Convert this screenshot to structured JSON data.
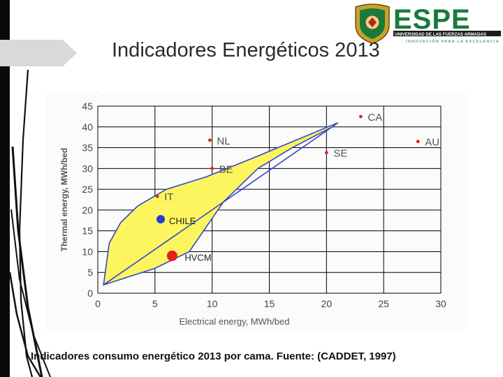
{
  "slide": {
    "title": "Indicadores Energéticos 2013",
    "caption": "Indicadores consumo energético 2013 por cama. Fuente: (CADDET, 1997)"
  },
  "logo": {
    "wordmark": "ESPE",
    "subtitle": "UNIVERSIDAD DE LAS FUERZAS ARMADAS",
    "tagline": "INNOVACIÓN PARA LA EXCELENCIA",
    "colors": {
      "green": "#1a7a3c",
      "text": "#1a1a1a"
    }
  },
  "colors": {
    "region_fill": "#fdf55f",
    "region_edge": "#3346c4",
    "point_red": "#e2231a",
    "point_blue": "#1f3fd6",
    "grid": "#000000"
  },
  "chart_data": {
    "type": "scatter",
    "xlabel": "Electrical energy, MWh/bed",
    "ylabel": "Thermal energy, MWh/bed",
    "xlim": [
      0,
      30
    ],
    "ylim": [
      0,
      45
    ],
    "x_ticks": [
      0,
      5,
      10,
      15,
      20,
      25,
      30
    ],
    "y_ticks": [
      0,
      5,
      10,
      15,
      20,
      25,
      30,
      35,
      40,
      45
    ],
    "grid": true,
    "points": [
      {
        "label": "CA",
        "x": 23.0,
        "y": 42.5,
        "color": "#e2231a",
        "size": "small"
      },
      {
        "label": "NL",
        "x": 9.8,
        "y": 36.8,
        "color": "#e2231a",
        "size": "small"
      },
      {
        "label": "AU",
        "x": 28.0,
        "y": 36.5,
        "color": "#e2231a",
        "size": "small"
      },
      {
        "label": "SE",
        "x": 20.0,
        "y": 33.8,
        "color": "#e2231a",
        "size": "small"
      },
      {
        "label": "BE",
        "x": 10.0,
        "y": 30.0,
        "color": "#e2231a",
        "size": "small"
      },
      {
        "label": "IT",
        "x": 5.2,
        "y": 23.3,
        "color": "#e2231a",
        "size": "small"
      },
      {
        "label": "CHILE",
        "x": 5.5,
        "y": 17.8,
        "color": "#1f3fd6",
        "size": "large"
      },
      {
        "label": "HVCM",
        "x": 6.5,
        "y": 9.0,
        "color": "#e2231a",
        "size": "large"
      }
    ],
    "region": {
      "outline": [
        [
          0.5,
          2.0
        ],
        [
          1.0,
          12.0
        ],
        [
          2.0,
          17.0
        ],
        [
          3.5,
          21.0
        ],
        [
          6.0,
          25.0
        ],
        [
          9.5,
          28.0
        ],
        [
          14.0,
          33.0
        ],
        [
          17.5,
          37.0
        ],
        [
          21.0,
          41.0
        ],
        [
          20.5,
          40.0
        ],
        [
          17.0,
          35.0
        ],
        [
          14.0,
          30.0
        ],
        [
          11.0,
          22.0
        ],
        [
          9.5,
          16.0
        ],
        [
          8.0,
          10.0
        ],
        [
          5.0,
          6.0
        ],
        [
          0.5,
          2.0
        ]
      ],
      "diagonal": [
        [
          0.5,
          2.0
        ],
        [
          20.5,
          40.0
        ]
      ]
    }
  }
}
